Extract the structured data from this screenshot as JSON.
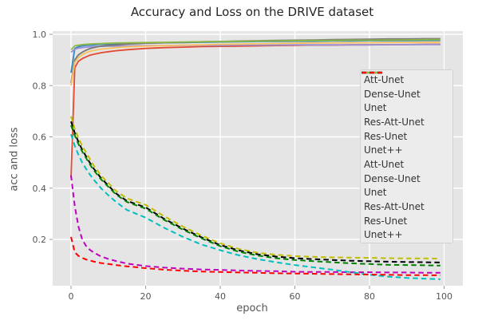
{
  "title": "Accuracy and Loss on the DRIVE dataset",
  "chart_data": {
    "type": "line",
    "title": "Accuracy and Loss on the DRIVE dataset",
    "xlabel": "epoch",
    "ylabel": "acc and loss",
    "xlim": [
      -5,
      105
    ],
    "ylim": [
      0.02,
      1.01
    ],
    "x_ticks": [
      0,
      20,
      40,
      60,
      80,
      100
    ],
    "y_ticks": [
      1.0,
      0.8,
      0.6,
      0.4,
      0.2
    ],
    "grid": true,
    "plot_background": "#e5e5e5",
    "gridline_color": "#ffffff",
    "legend_position": "center-right",
    "x": [
      0,
      1,
      2,
      3,
      4,
      5,
      6,
      8,
      10,
      12,
      15,
      20,
      25,
      30,
      35,
      40,
      45,
      50,
      55,
      60,
      65,
      70,
      75,
      80,
      85,
      90,
      95,
      99
    ],
    "series": [
      {
        "name": "Att-Unet",
        "kind": "accuracy",
        "style": "solid",
        "color": "#E24A33",
        "values": [
          0.44,
          0.87,
          0.895,
          0.905,
          0.912,
          0.918,
          0.922,
          0.928,
          0.932,
          0.936,
          0.94,
          0.945,
          0.948,
          0.95,
          0.952,
          0.953,
          0.954,
          0.955,
          0.956,
          0.957,
          0.958,
          0.958,
          0.959,
          0.959,
          0.96,
          0.96,
          0.961,
          0.961
        ]
      },
      {
        "name": "Dense-Unet",
        "kind": "accuracy",
        "style": "solid",
        "color": "#348ABD",
        "values": [
          0.85,
          0.945,
          0.952,
          0.955,
          0.957,
          0.958,
          0.959,
          0.961,
          0.962,
          0.963,
          0.964,
          0.966,
          0.967,
          0.968,
          0.969,
          0.97,
          0.971,
          0.972,
          0.972,
          0.973,
          0.973,
          0.974,
          0.974,
          0.975,
          0.975,
          0.975,
          0.976,
          0.976
        ]
      },
      {
        "name": "Unet",
        "kind": "accuracy",
        "style": "solid",
        "color": "#988ED5",
        "values": [
          0.93,
          0.942,
          0.946,
          0.948,
          0.95,
          0.951,
          0.952,
          0.953,
          0.954,
          0.954,
          0.955,
          0.956,
          0.956,
          0.957,
          0.957,
          0.957,
          0.958,
          0.958,
          0.958,
          0.959,
          0.959,
          0.959,
          0.959,
          0.959,
          0.96,
          0.96,
          0.96,
          0.96
        ]
      },
      {
        "name": "Res-Att-Unet",
        "kind": "accuracy",
        "style": "solid",
        "color": "#777777",
        "values": [
          0.81,
          0.9,
          0.92,
          0.93,
          0.938,
          0.944,
          0.948,
          0.954,
          0.957,
          0.959,
          0.962,
          0.965,
          0.967,
          0.969,
          0.971,
          0.972,
          0.974,
          0.975,
          0.976,
          0.977,
          0.978,
          0.979,
          0.98,
          0.981,
          0.982,
          0.982,
          0.983,
          0.983
        ]
      },
      {
        "name": "Res-Unet",
        "kind": "accuracy",
        "style": "solid",
        "color": "#FBC15E",
        "values": [
          0.8,
          0.89,
          0.91,
          0.92,
          0.928,
          0.933,
          0.937,
          0.942,
          0.945,
          0.948,
          0.951,
          0.954,
          0.956,
          0.958,
          0.959,
          0.961,
          0.962,
          0.963,
          0.964,
          0.965,
          0.966,
          0.966,
          0.967,
          0.967,
          0.968,
          0.968,
          0.969,
          0.969
        ]
      },
      {
        "name": "Unet++",
        "kind": "accuracy",
        "style": "solid",
        "color": "#8EBA42",
        "values": [
          0.94,
          0.955,
          0.958,
          0.96,
          0.961,
          0.962,
          0.963,
          0.964,
          0.965,
          0.966,
          0.967,
          0.968,
          0.969,
          0.97,
          0.971,
          0.972,
          0.973,
          0.974,
          0.974,
          0.975,
          0.976,
          0.976,
          0.977,
          0.977,
          0.978,
          0.978,
          0.979,
          0.979
        ]
      },
      {
        "name": "Att-Unet",
        "kind": "loss",
        "style": "dashed",
        "color": "#BFBF00",
        "values": [
          0.68,
          0.63,
          0.595,
          0.565,
          0.54,
          0.515,
          0.49,
          0.45,
          0.42,
          0.39,
          0.36,
          0.335,
          0.29,
          0.25,
          0.215,
          0.185,
          0.163,
          0.148,
          0.14,
          0.135,
          0.132,
          0.13,
          0.129,
          0.128,
          0.127,
          0.126,
          0.126,
          0.125
        ]
      },
      {
        "name": "Dense-Unet",
        "kind": "loss",
        "style": "dashed",
        "color": "#BF00BF",
        "values": [
          0.45,
          0.33,
          0.25,
          0.2,
          0.175,
          0.16,
          0.15,
          0.134,
          0.124,
          0.116,
          0.106,
          0.096,
          0.09,
          0.086,
          0.083,
          0.081,
          0.079,
          0.077,
          0.076,
          0.074,
          0.073,
          0.073,
          0.072,
          0.072,
          0.071,
          0.071,
          0.07,
          0.07
        ]
      },
      {
        "name": "Unet",
        "kind": "loss",
        "style": "dashed",
        "color": "#000000",
        "values": [
          0.66,
          0.615,
          0.58,
          0.55,
          0.525,
          0.5,
          0.478,
          0.44,
          0.41,
          0.38,
          0.35,
          0.325,
          0.28,
          0.242,
          0.208,
          0.178,
          0.157,
          0.142,
          0.133,
          0.127,
          0.123,
          0.12,
          0.117,
          0.115,
          0.113,
          0.112,
          0.111,
          0.11
        ]
      },
      {
        "name": "Res-Att-Unet",
        "kind": "loss",
        "style": "dashed",
        "color": "#00BFBF",
        "values": [
          0.61,
          0.565,
          0.53,
          0.5,
          0.476,
          0.454,
          0.435,
          0.4,
          0.372,
          0.347,
          0.315,
          0.285,
          0.245,
          0.21,
          0.18,
          0.158,
          0.138,
          0.123,
          0.111,
          0.1,
          0.091,
          0.082,
          0.072,
          0.062,
          0.055,
          0.05,
          0.047,
          0.045
        ]
      },
      {
        "name": "Res-Unet",
        "kind": "loss",
        "style": "dashed",
        "color": "#008000",
        "values": [
          0.645,
          0.605,
          0.572,
          0.543,
          0.518,
          0.494,
          0.472,
          0.435,
          0.405,
          0.376,
          0.346,
          0.32,
          0.276,
          0.238,
          0.204,
          0.174,
          0.152,
          0.137,
          0.127,
          0.12,
          0.115,
          0.111,
          0.107,
          0.104,
          0.101,
          0.1,
          0.099,
          0.098
        ]
      },
      {
        "name": "Unet++",
        "kind": "loss",
        "style": "dashed",
        "color": "#FF0000",
        "values": [
          0.21,
          0.15,
          0.136,
          0.128,
          0.122,
          0.118,
          0.114,
          0.108,
          0.104,
          0.1,
          0.095,
          0.088,
          0.082,
          0.078,
          0.075,
          0.073,
          0.071,
          0.07,
          0.068,
          0.067,
          0.066,
          0.065,
          0.064,
          0.063,
          0.062,
          0.061,
          0.061,
          0.06
        ]
      }
    ]
  }
}
